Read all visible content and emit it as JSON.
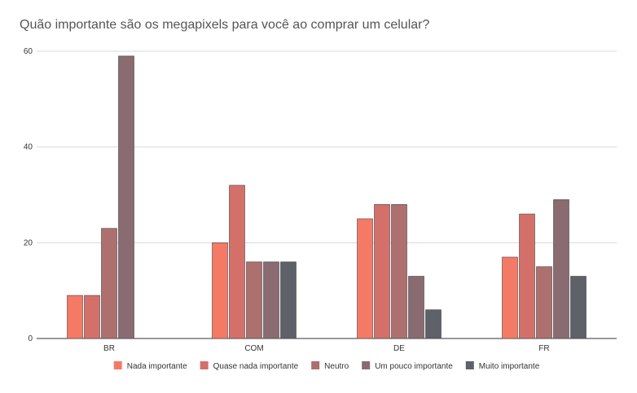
{
  "chart_data": {
    "type": "bar",
    "title": "Quão importante são os megapixels para você ao comprar um celular?",
    "categories": [
      "BR",
      "COM",
      "DE",
      "FR"
    ],
    "series": [
      {
        "name": "Nada importante",
        "color": "#F47A66",
        "values": [
          9,
          20,
          25,
          17
        ]
      },
      {
        "name": "Quase nada importante",
        "color": "#D4706A",
        "values": [
          9,
          32,
          28,
          26
        ]
      },
      {
        "name": "Neutro",
        "color": "#AE6F6F",
        "values": [
          23,
          16,
          28,
          15
        ]
      },
      {
        "name": "Um pouco importante",
        "color": "#8A6B72",
        "values": [
          59,
          16,
          13,
          29
        ]
      },
      {
        "name": "Muito importante",
        "color": "#5F6169",
        "values": [
          null,
          16,
          6,
          13
        ]
      }
    ],
    "ylim": [
      0,
      60
    ],
    "yticks": [
      0,
      20,
      40,
      60
    ],
    "xlabel": "",
    "ylabel": "",
    "grid": true,
    "legend_position": "bottom"
  }
}
